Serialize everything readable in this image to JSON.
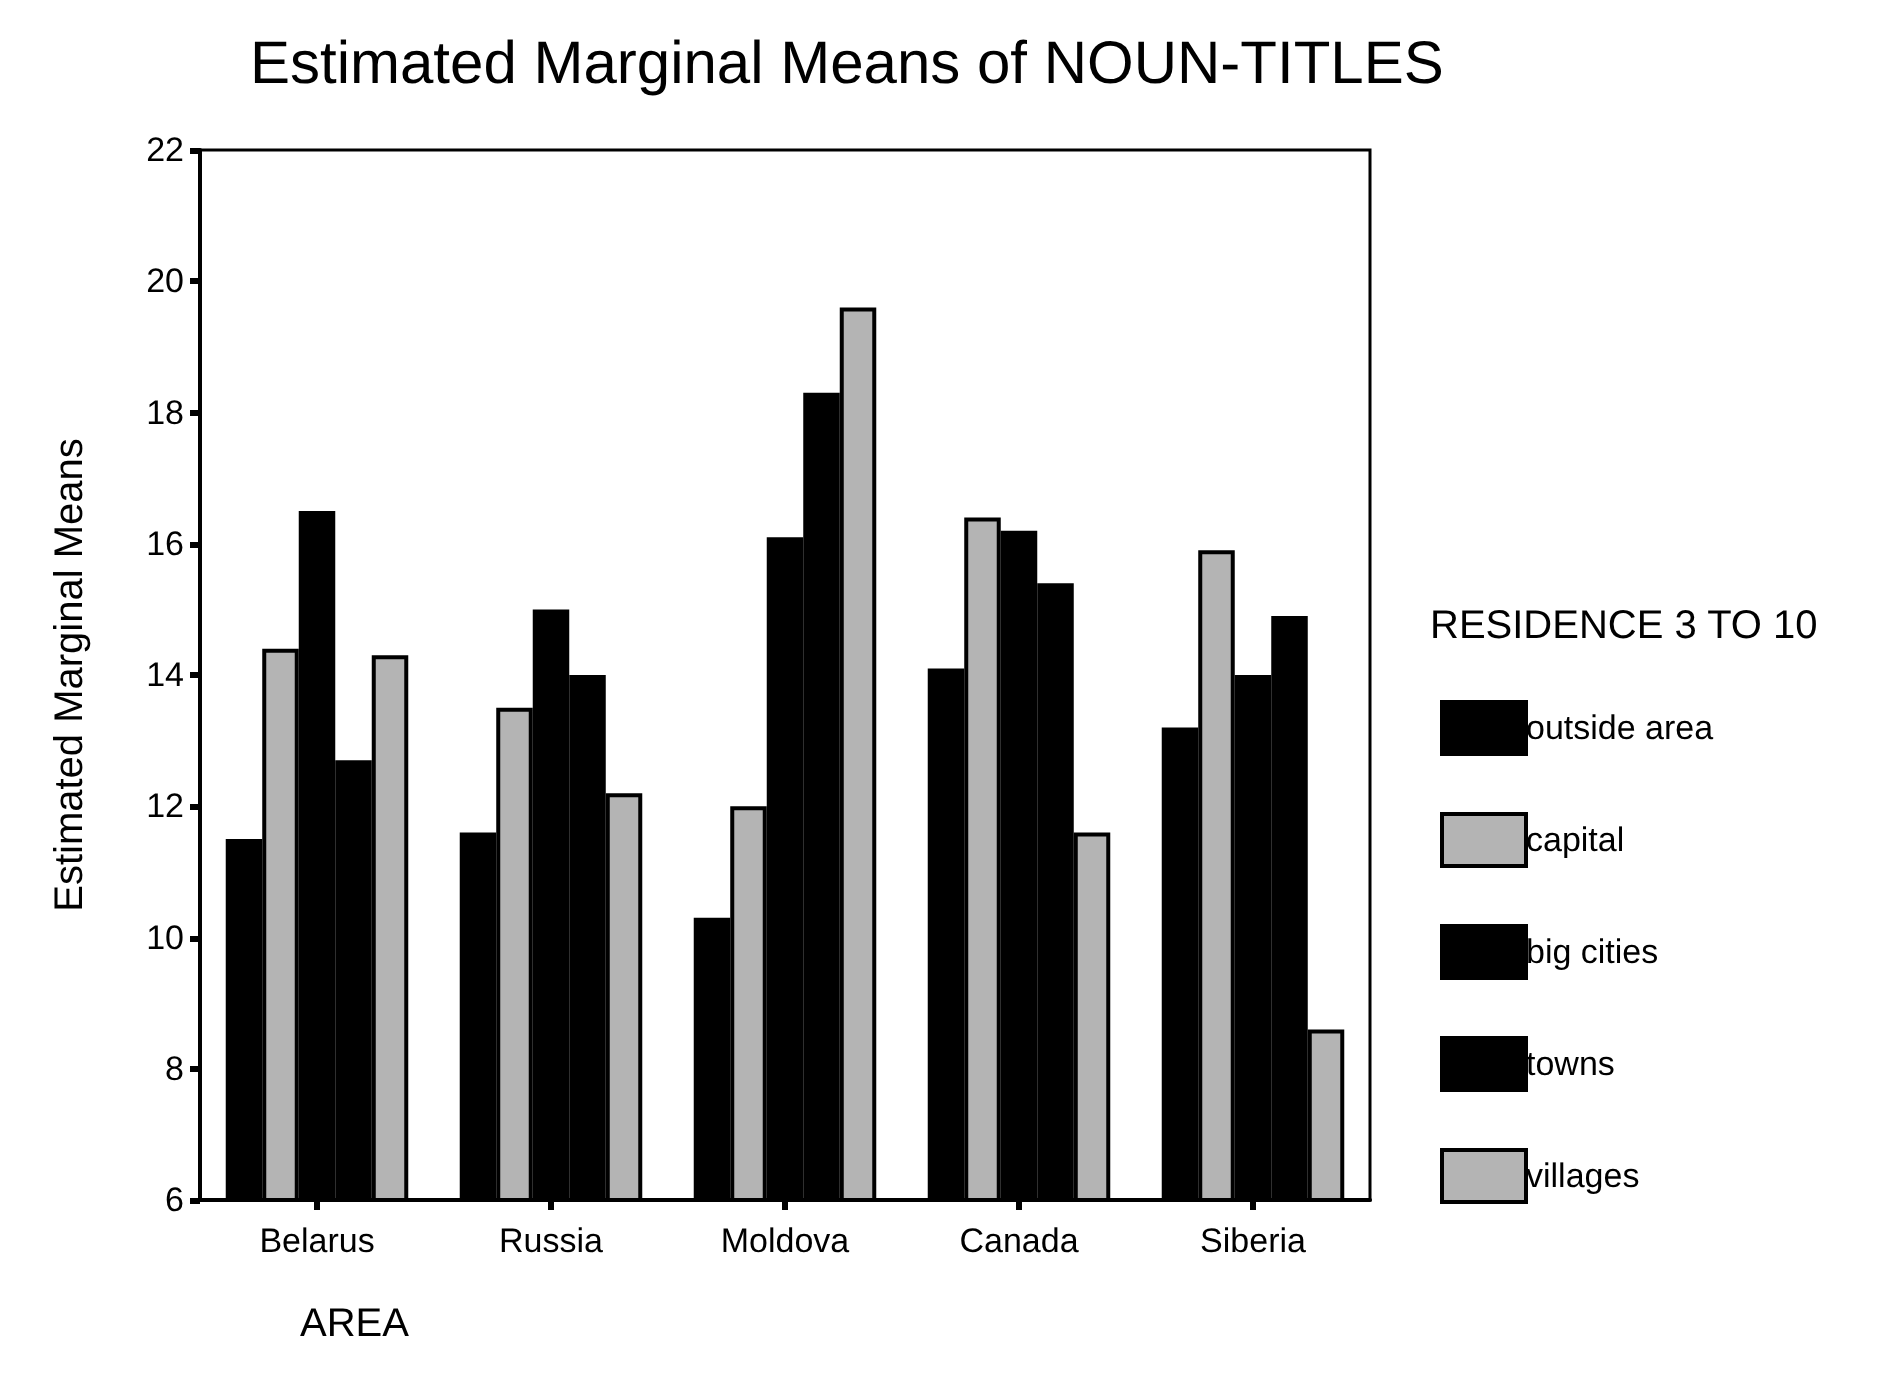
{
  "chart_data": {
    "type": "bar",
    "title": "Estimated Marginal Means of NOUN-TITLES",
    "xlabel": "AREA",
    "ylabel": "Estimated Marginal Means",
    "legend_title": "RESIDENCE 3 TO 10",
    "categories": [
      "Belarus",
      "Russia",
      "Moldova",
      "Canada",
      "Siberia"
    ],
    "series": [
      {
        "name": "outside area",
        "color": "#000000",
        "values": [
          11.5,
          11.6,
          10.3,
          14.1,
          13.2
        ]
      },
      {
        "name": "capital",
        "color": "#b4b4b4",
        "values": [
          14.4,
          13.5,
          12.0,
          16.4,
          15.9
        ]
      },
      {
        "name": "big cities",
        "color": "#000000",
        "values": [
          16.5,
          15.0,
          16.1,
          16.2,
          14.0
        ]
      },
      {
        "name": "towns",
        "color": "#000000",
        "values": [
          12.7,
          14.0,
          18.3,
          15.4,
          14.9
        ]
      },
      {
        "name": "villages",
        "color": "#b4b4b4",
        "values": [
          14.3,
          12.2,
          19.6,
          11.6,
          8.6
        ]
      }
    ],
    "ylim": [
      6,
      22
    ],
    "yticks": [
      6,
      8,
      10,
      12,
      14,
      16,
      18,
      20,
      22
    ],
    "grid": false,
    "legend": "right"
  }
}
